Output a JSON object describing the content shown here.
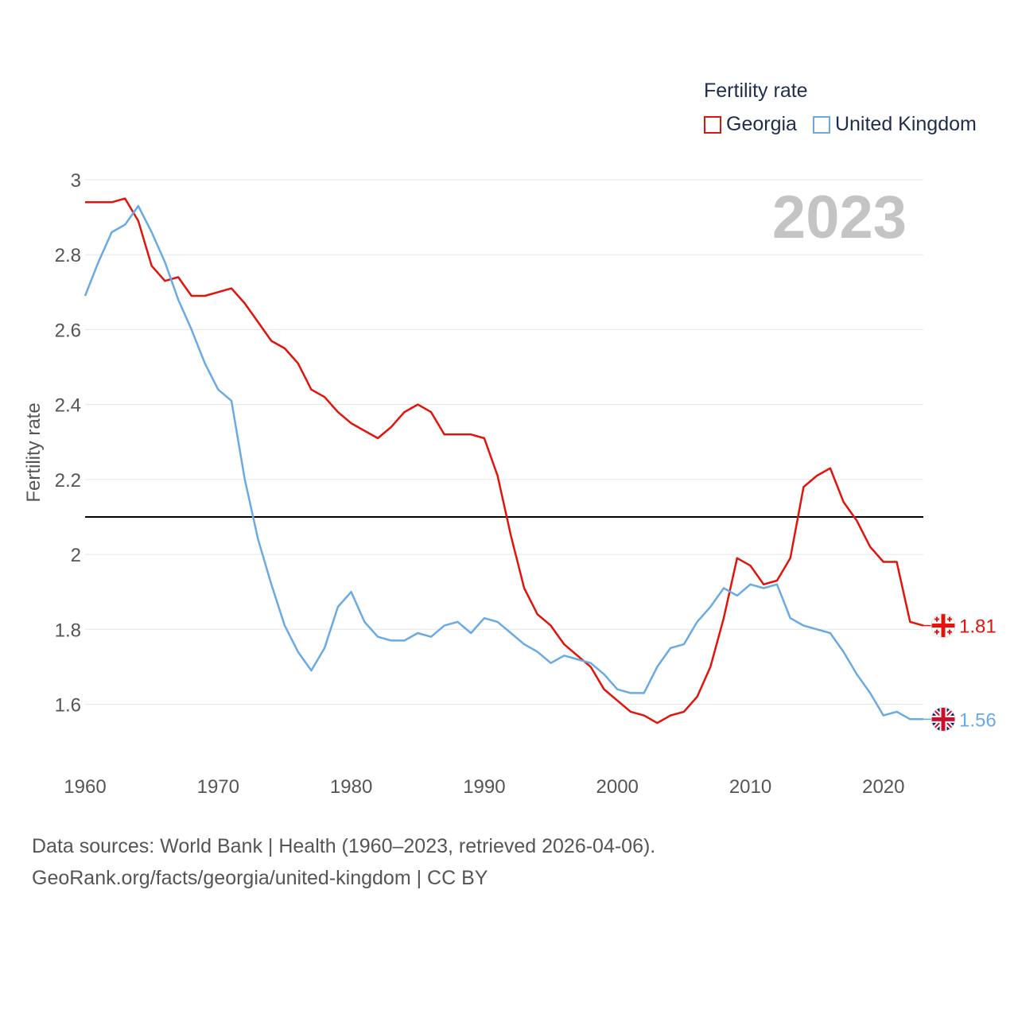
{
  "legend": {
    "title": "Fertility rate"
  },
  "year_label": "2023",
  "source": {
    "line1": "Data sources: World Bank | Health (1960–2023, retrieved 2026-04-06).",
    "line2": "GeoRank.org/facts/georgia/united-kingdom | CC BY"
  },
  "chart_data": {
    "type": "line",
    "title": "Fertility rate",
    "xlabel": "",
    "ylabel": "Fertility rate",
    "xlim": [
      1960,
      2023
    ],
    "ylim": [
      1.5,
      3.0
    ],
    "x_ticks": [
      1960,
      1970,
      1980,
      1990,
      2000,
      2010,
      2020
    ],
    "y_ticks": [
      1.6,
      1.8,
      2.0,
      2.2,
      2.4,
      2.6,
      2.8,
      3.0
    ],
    "y_tick_labels": [
      "1.6",
      "1.8",
      "2",
      "2.2",
      "2.4",
      "2.6",
      "2.8",
      "3"
    ],
    "reference_line": {
      "y": 2.1,
      "color": "#000000"
    },
    "grid": true,
    "legend_position": "top-right",
    "x": [
      1960,
      1961,
      1962,
      1963,
      1964,
      1965,
      1966,
      1967,
      1968,
      1969,
      1970,
      1971,
      1972,
      1973,
      1974,
      1975,
      1976,
      1977,
      1978,
      1979,
      1980,
      1981,
      1982,
      1983,
      1984,
      1985,
      1986,
      1987,
      1988,
      1989,
      1990,
      1991,
      1992,
      1993,
      1994,
      1995,
      1996,
      1997,
      1998,
      1999,
      2000,
      2001,
      2002,
      2003,
      2004,
      2005,
      2006,
      2007,
      2008,
      2009,
      2010,
      2011,
      2012,
      2013,
      2014,
      2015,
      2016,
      2017,
      2018,
      2019,
      2020,
      2021,
      2022,
      2023
    ],
    "series": [
      {
        "name": "Georgia",
        "color": "#e3120b",
        "end_label": "1.81",
        "flag_icon": "georgia-flag-icon",
        "values": [
          2.94,
          2.94,
          2.94,
          2.95,
          2.89,
          2.77,
          2.73,
          2.74,
          2.69,
          2.69,
          2.7,
          2.71,
          2.67,
          2.62,
          2.57,
          2.55,
          2.51,
          2.44,
          2.42,
          2.38,
          2.35,
          2.33,
          2.31,
          2.34,
          2.38,
          2.4,
          2.38,
          2.32,
          2.32,
          2.32,
          2.31,
          2.21,
          2.05,
          1.91,
          1.84,
          1.81,
          1.76,
          1.73,
          1.7,
          1.64,
          1.61,
          1.58,
          1.57,
          1.55,
          1.57,
          1.58,
          1.62,
          1.7,
          1.83,
          1.99,
          1.97,
          1.92,
          1.93,
          1.99,
          2.18,
          2.21,
          2.23,
          2.14,
          2.09,
          2.02,
          1.98,
          1.98,
          1.82,
          1.81
        ]
      },
      {
        "name": "United Kingdom",
        "color": "#6aaae4",
        "end_label": "1.56",
        "flag_icon": "uk-flag-icon",
        "values": [
          2.69,
          2.78,
          2.86,
          2.88,
          2.93,
          2.86,
          2.78,
          2.68,
          2.6,
          2.51,
          2.44,
          2.41,
          2.2,
          2.04,
          1.92,
          1.81,
          1.74,
          1.69,
          1.75,
          1.86,
          1.9,
          1.82,
          1.78,
          1.77,
          1.77,
          1.79,
          1.78,
          1.81,
          1.82,
          1.79,
          1.83,
          1.82,
          1.79,
          1.76,
          1.74,
          1.71,
          1.73,
          1.72,
          1.71,
          1.68,
          1.64,
          1.63,
          1.63,
          1.7,
          1.75,
          1.76,
          1.82,
          1.86,
          1.91,
          1.89,
          1.92,
          1.91,
          1.92,
          1.83,
          1.81,
          1.8,
          1.79,
          1.74,
          1.68,
          1.63,
          1.57,
          1.58,
          1.56,
          1.56
        ]
      }
    ]
  }
}
